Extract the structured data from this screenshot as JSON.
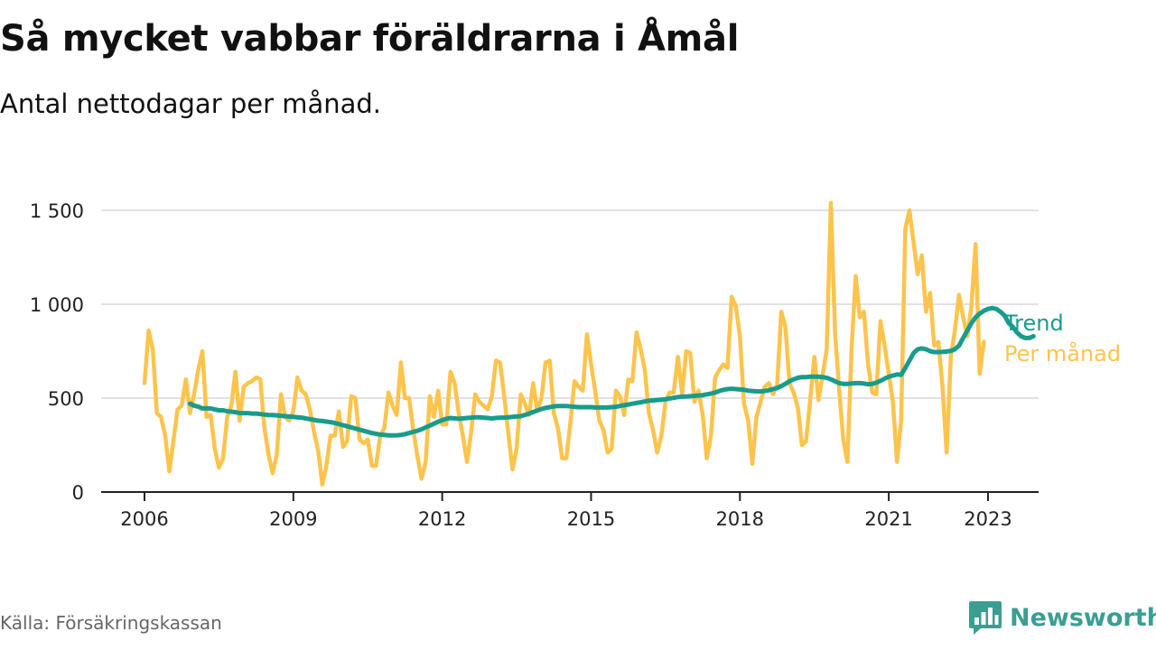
{
  "header": {
    "title": "Så mycket vabbar föräldrarna i Åmål",
    "subtitle": "Antal nettodagar per månad."
  },
  "footer": {
    "source": "Källa: Försäkringskassan",
    "brand": "Newsworthy",
    "brand_icon": "bar-chart-speech-bubble-icon"
  },
  "colors": {
    "trend": "#1a9b8c",
    "monthly": "#fcc44d",
    "grid": "#d9d9d9",
    "axis": "#222222",
    "brand": "#3a9e92"
  },
  "chart_data": {
    "type": "line",
    "x_unit": "decimal year (month index)",
    "xlim": [
      2006,
      2023.4
    ],
    "ylim": [
      0,
      1550
    ],
    "x_ticks": [
      2006,
      2009,
      2012,
      2015,
      2018,
      2021,
      2023
    ],
    "x_tick_labels": [
      "2006",
      "2009",
      "2012",
      "2015",
      "2018",
      "2021",
      "2023"
    ],
    "y_ticks": [
      0,
      500,
      1000,
      1500
    ],
    "y_tick_labels": [
      "0",
      "500",
      "1 000",
      "1 500"
    ],
    "grid": "horizontal",
    "legend": "right-end labels",
    "series": [
      {
        "name": "Per månad",
        "color": "#fcc44d",
        "x_start": 2006.0,
        "x_step": 0.08333,
        "values": [
          580,
          860,
          760,
          420,
          400,
          300,
          110,
          270,
          440,
          460,
          600,
          420,
          520,
          650,
          750,
          400,
          410,
          230,
          130,
          180,
          400,
          460,
          640,
          380,
          560,
          580,
          590,
          610,
          600,
          340,
          200,
          100,
          200,
          520,
          400,
          380,
          430,
          610,
          540,
          520,
          440,
          320,
          220,
          40,
          140,
          300,
          300,
          430,
          240,
          270,
          510,
          500,
          280,
          260,
          280,
          140,
          140,
          300,
          340,
          530,
          460,
          410,
          690,
          500,
          500,
          330,
          190,
          70,
          160,
          510,
          400,
          540,
          360,
          360,
          640,
          580,
          420,
          300,
          160,
          320,
          520,
          480,
          460,
          440,
          510,
          700,
          690,
          510,
          310,
          120,
          230,
          520,
          470,
          410,
          580,
          430,
          500,
          690,
          700,
          420,
          340,
          180,
          180,
          370,
          590,
          560,
          540,
          840,
          680,
          540,
          380,
          330,
          210,
          230,
          540,
          510,
          410,
          600,
          590,
          850,
          760,
          650,
          420,
          330,
          210,
          300,
          480,
          530,
          530,
          720,
          520,
          750,
          740,
          480,
          540,
          410,
          180,
          300,
          610,
          650,
          680,
          660,
          1040,
          990,
          830,
          470,
          380,
          150,
          400,
          480,
          560,
          580,
          520,
          570,
          960,
          880,
          580,
          530,
          450,
          250,
          270,
          490,
          720,
          490,
          620,
          760,
          1540,
          850,
          550,
          280,
          160,
          760,
          1150,
          930,
          960,
          680,
          530,
          520,
          910,
          780,
          630,
          480,
          160,
          380,
          1400,
          1500,
          1330,
          1160,
          1260,
          960,
          1060,
          780,
          800,
          560,
          210,
          720,
          860,
          1050,
          930,
          830,
          990,
          1320,
          630,
          800
        ]
      },
      {
        "name": "Trend",
        "color": "#1a9b8c",
        "x_start": 2006.9167,
        "x_step": 0.08333,
        "values": [
          470,
          460,
          455,
          445,
          445,
          445,
          440,
          435,
          435,
          430,
          428,
          425,
          420,
          420,
          420,
          418,
          418,
          415,
          412,
          410,
          410,
          408,
          406,
          404,
          402,
          400,
          398,
          396,
          392,
          388,
          384,
          380,
          378,
          375,
          372,
          368,
          362,
          356,
          350,
          344,
          338,
          332,
          326,
          320,
          314,
          310,
          306,
          304,
          302,
          302,
          302,
          304,
          308,
          314,
          320,
          326,
          334,
          344,
          354,
          364,
          374,
          382,
          390,
          394,
          392,
          390,
          392,
          394,
          396,
          398,
          398,
          396,
          394,
          392,
          394,
          396,
          396,
          398,
          400,
          402,
          404,
          410,
          418,
          426,
          434,
          442,
          448,
          452,
          456,
          458,
          458,
          458,
          456,
          454,
          452,
          452,
          452,
          452,
          450,
          450,
          450,
          450,
          452,
          454,
          458,
          462,
          466,
          470,
          474,
          478,
          482,
          486,
          488,
          490,
          492,
          494,
          498,
          502,
          506,
          508,
          508,
          510,
          512,
          514,
          516,
          520,
          524,
          530,
          538,
          544,
          548,
          550,
          548,
          546,
          544,
          540,
          538,
          536,
          536,
          538,
          542,
          548,
          554,
          564,
          576,
          590,
          600,
          608,
          612,
          612,
          614,
          614,
          614,
          612,
          608,
          600,
          590,
          580,
          576,
          576,
          578,
          580,
          580,
          578,
          574,
          576,
          582,
          592,
          604,
          614,
          620,
          626,
          624,
          660,
          700,
          740,
          760,
          765,
          760,
          750,
          745,
          745,
          746,
          748,
          752,
          760,
          780,
          820,
          860,
          900,
          930,
          950,
          965,
          975,
          980,
          975,
          960,
          940,
          900,
          880,
          850,
          830,
          820,
          820,
          830
        ]
      }
    ]
  }
}
